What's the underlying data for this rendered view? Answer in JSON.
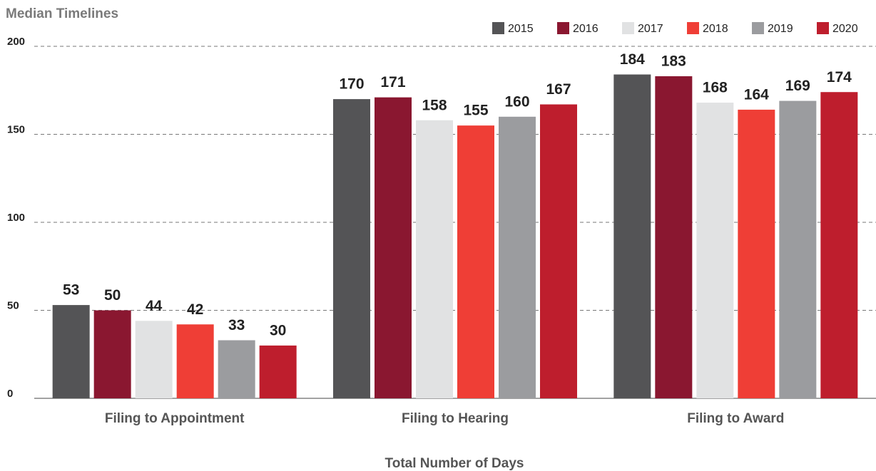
{
  "chart_data": {
    "type": "bar",
    "title": "Median Timelines",
    "x_label": "Total Number of Days",
    "categories": [
      "Filing to Appointment",
      "Filing to Hearing",
      "Filing to Award"
    ],
    "series": [
      {
        "name": "2015",
        "color": "#545456",
        "values": [
          53,
          170,
          184
        ]
      },
      {
        "name": "2016",
        "color": "#8a1730",
        "values": [
          50,
          171,
          183
        ]
      },
      {
        "name": "2017",
        "color": "#e1e2e3",
        "values": [
          44,
          158,
          168
        ]
      },
      {
        "name": "2018",
        "color": "#ef3e36",
        "values": [
          42,
          155,
          164
        ]
      },
      {
        "name": "2019",
        "color": "#9b9c9f",
        "values": [
          33,
          160,
          169
        ]
      },
      {
        "name": "2020",
        "color": "#be1e2d",
        "values": [
          30,
          167,
          174
        ]
      }
    ],
    "ylim": [
      0,
      200
    ],
    "yticks": [
      0,
      50,
      100,
      150,
      200
    ],
    "grid": true,
    "legend": "top-right"
  }
}
